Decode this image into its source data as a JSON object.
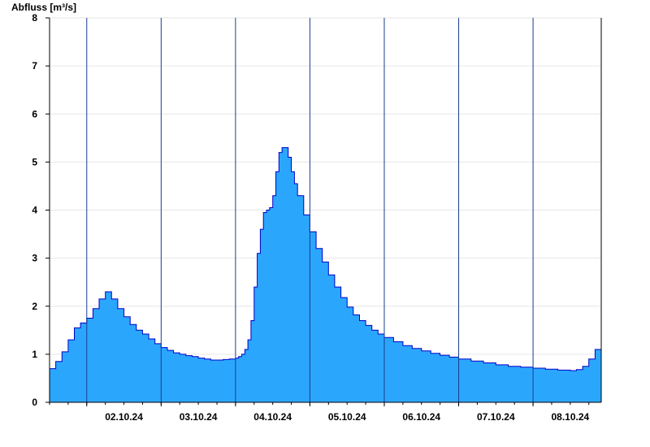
{
  "chart_data": {
    "type": "area",
    "title": "",
    "ylabel": "Abfluss [m³/s]",
    "xlabel": "",
    "ylim": [
      0,
      8
    ],
    "yticks": [
      0,
      1,
      2,
      3,
      4,
      5,
      6,
      7,
      8
    ],
    "xlim": [
      "2024-10-01T12:00",
      "2024-10-08T22:00"
    ],
    "day_ticks": [
      "02.10.24",
      "03.10.24",
      "04.10.24",
      "05.10.24",
      "06.10.24",
      "07.10.24",
      "08.10.24"
    ],
    "grid": true,
    "fill_color": "#2ba6fd",
    "line_color": "#0000c8",
    "series": [
      {
        "x": [
          "2024-10-01T12:00",
          "2024-10-01T14:00",
          "2024-10-01T16:00",
          "2024-10-01T18:00",
          "2024-10-01T20:00",
          "2024-10-01T22:00",
          "2024-10-02T00:00",
          "2024-10-02T02:00",
          "2024-10-02T04:00",
          "2024-10-02T06:00",
          "2024-10-02T08:00",
          "2024-10-02T10:00",
          "2024-10-02T12:00",
          "2024-10-02T14:00",
          "2024-10-02T16:00",
          "2024-10-02T18:00",
          "2024-10-02T20:00",
          "2024-10-02T22:00",
          "2024-10-03T00:00",
          "2024-10-03T02:00",
          "2024-10-03T04:00",
          "2024-10-03T06:00",
          "2024-10-03T08:00",
          "2024-10-03T10:00",
          "2024-10-03T12:00",
          "2024-10-03T14:00",
          "2024-10-03T16:00",
          "2024-10-03T18:00",
          "2024-10-03T20:00",
          "2024-10-03T22:00",
          "2024-10-04T00:00",
          "2024-10-04T01:00",
          "2024-10-04T02:00",
          "2024-10-04T03:00",
          "2024-10-04T04:00",
          "2024-10-04T05:00",
          "2024-10-04T06:00",
          "2024-10-04T07:00",
          "2024-10-04T08:00",
          "2024-10-04T09:00",
          "2024-10-04T10:00",
          "2024-10-04T11:00",
          "2024-10-04T12:00",
          "2024-10-04T13:00",
          "2024-10-04T14:00",
          "2024-10-04T15:00",
          "2024-10-04T16:00",
          "2024-10-04T17:00",
          "2024-10-04T18:00",
          "2024-10-04T19:00",
          "2024-10-04T20:00",
          "2024-10-04T22:00",
          "2024-10-05T00:00",
          "2024-10-05T02:00",
          "2024-10-05T04:00",
          "2024-10-05T06:00",
          "2024-10-05T08:00",
          "2024-10-05T10:00",
          "2024-10-05T12:00",
          "2024-10-05T14:00",
          "2024-10-05T16:00",
          "2024-10-05T18:00",
          "2024-10-05T20:00",
          "2024-10-05T22:00",
          "2024-10-06T00:00",
          "2024-10-06T03:00",
          "2024-10-06T06:00",
          "2024-10-06T09:00",
          "2024-10-06T12:00",
          "2024-10-06T15:00",
          "2024-10-06T18:00",
          "2024-10-06T21:00",
          "2024-10-07T00:00",
          "2024-10-07T04:00",
          "2024-10-07T08:00",
          "2024-10-07T12:00",
          "2024-10-07T16:00",
          "2024-10-07T20:00",
          "2024-10-08T00:00",
          "2024-10-08T04:00",
          "2024-10-08T08:00",
          "2024-10-08T12:00",
          "2024-10-08T14:00",
          "2024-10-08T16:00",
          "2024-10-08T18:00",
          "2024-10-08T20:00",
          "2024-10-08T22:00"
        ],
        "y": [
          0.7,
          0.85,
          1.05,
          1.3,
          1.55,
          1.65,
          1.75,
          1.95,
          2.15,
          2.3,
          2.15,
          1.95,
          1.78,
          1.62,
          1.5,
          1.42,
          1.32,
          1.22,
          1.14,
          1.08,
          1.03,
          1.0,
          0.97,
          0.95,
          0.92,
          0.9,
          0.88,
          0.88,
          0.89,
          0.9,
          0.92,
          0.95,
          1.0,
          1.1,
          1.3,
          1.7,
          2.4,
          3.1,
          3.6,
          3.95,
          4.0,
          4.05,
          4.3,
          4.8,
          5.2,
          5.3,
          5.3,
          5.1,
          4.8,
          4.55,
          4.3,
          3.9,
          3.55,
          3.2,
          2.92,
          2.65,
          2.4,
          2.18,
          1.98,
          1.82,
          1.7,
          1.6,
          1.5,
          1.42,
          1.35,
          1.26,
          1.18,
          1.12,
          1.07,
          1.02,
          0.98,
          0.94,
          0.9,
          0.86,
          0.82,
          0.78,
          0.75,
          0.73,
          0.71,
          0.69,
          0.67,
          0.66,
          0.68,
          0.75,
          0.9,
          1.1,
          1.3
        ]
      }
    ]
  }
}
